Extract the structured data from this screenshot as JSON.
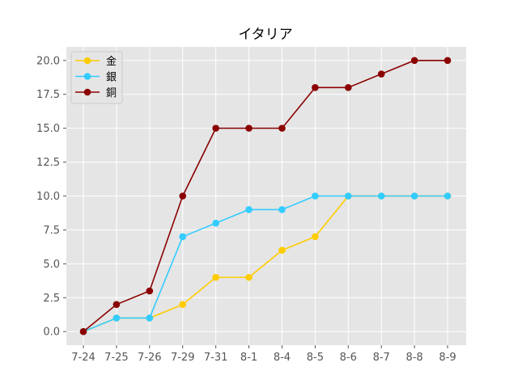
{
  "chart_data": {
    "type": "line",
    "title": "イタリア",
    "xlabel": "",
    "ylabel": "",
    "categories": [
      "7-24",
      "7-25",
      "7-26",
      "7-29",
      "7-31",
      "8-1",
      "8-4",
      "8-5",
      "8-6",
      "8-7",
      "8-8",
      "8-9"
    ],
    "ylim": [
      -1,
      21
    ],
    "yticks": [
      0.0,
      2.5,
      5.0,
      7.5,
      10.0,
      12.5,
      15.0,
      17.5,
      20.0
    ],
    "ytick_labels": [
      "0.0",
      "2.5",
      "5.0",
      "7.5",
      "10.0",
      "12.5",
      "15.0",
      "17.5",
      "20.0"
    ],
    "grid": true,
    "legend_position": "top-left",
    "series": [
      {
        "name": "金",
        "color": "#FFCC00",
        "values": [
          0,
          1,
          1,
          2,
          4,
          4,
          6,
          7,
          10,
          10,
          10,
          10
        ]
      },
      {
        "name": "銀",
        "color": "#33CCFF",
        "values": [
          0,
          1,
          1,
          7,
          8,
          9,
          9,
          10,
          10,
          10,
          10,
          10
        ]
      },
      {
        "name": "銅",
        "color": "#8B0000",
        "values": [
          0,
          2,
          3,
          10,
          15,
          15,
          15,
          18,
          18,
          19,
          20,
          20
        ]
      }
    ],
    "background_color": "#E5E5E5",
    "grid_color": "#FFFFFF"
  }
}
